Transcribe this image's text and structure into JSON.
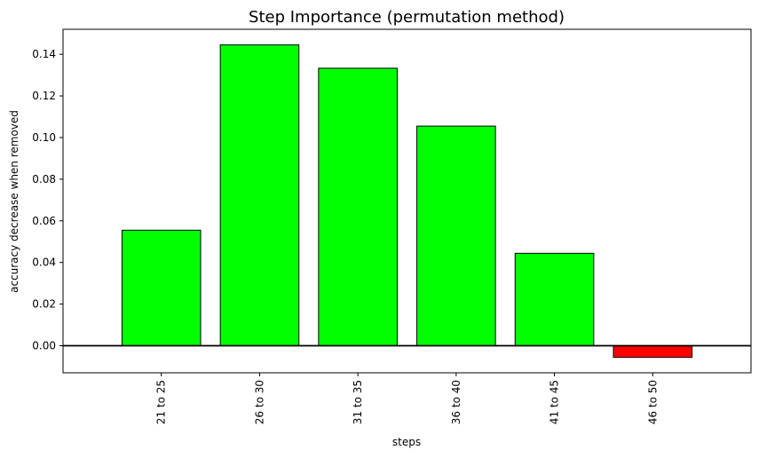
{
  "chart_data": {
    "type": "bar",
    "title": "Step Importance (permutation method)",
    "xlabel": "steps",
    "ylabel": "accuracy decrease when removed",
    "categories": [
      "21 to 25",
      "26 to 30",
      "31 to 35",
      "36 to 40",
      "41 to 45",
      "46 to 50"
    ],
    "values": [
      0.0555,
      0.1445,
      0.1333,
      0.1055,
      0.0444,
      -0.0056
    ],
    "ylim": [
      -0.013,
      0.152
    ],
    "yticks": [
      0.0,
      0.02,
      0.04,
      0.06,
      0.08,
      0.1,
      0.12,
      0.14
    ],
    "ytick_labels": [
      "0.00",
      "0.02",
      "0.04",
      "0.06",
      "0.08",
      "0.10",
      "0.12",
      "0.14"
    ],
    "grid": false,
    "colors": {
      "positive": "#00ff00",
      "negative": "#ff0000",
      "edge": "#000000",
      "zero_line": "#000000"
    }
  }
}
